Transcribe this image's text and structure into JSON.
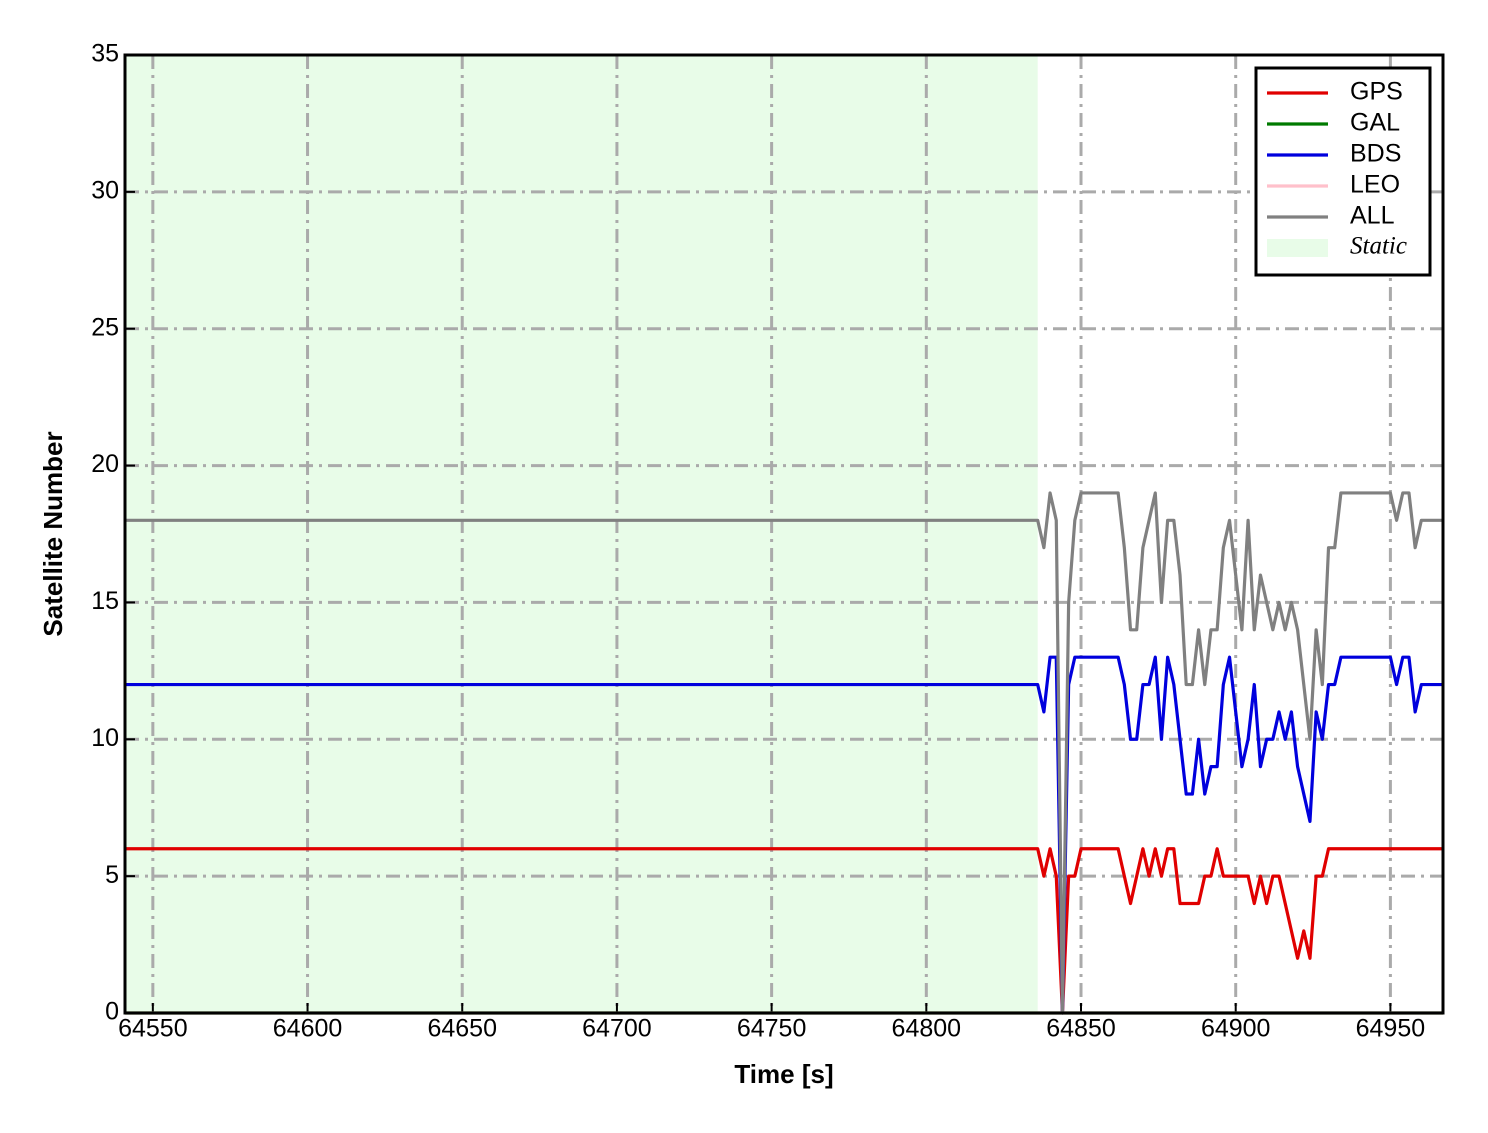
{
  "chart_data": {
    "type": "line",
    "xlabel": "Time [s]",
    "ylabel": "Satellite Number",
    "x": [
      64541,
      64836,
      64838,
      64840,
      64842,
      64844,
      64846,
      64848,
      64850,
      64852,
      64854,
      64856,
      64858,
      64860,
      64862,
      64864,
      64866,
      64868,
      64870,
      64872,
      64874,
      64876,
      64878,
      64880,
      64882,
      64884,
      64886,
      64888,
      64890,
      64892,
      64894,
      64896,
      64898,
      64900,
      64902,
      64904,
      64906,
      64908,
      64910,
      64912,
      64914,
      64916,
      64918,
      64920,
      64922,
      64924,
      64926,
      64928,
      64930,
      64932,
      64934,
      64936,
      64938,
      64940,
      64942,
      64944,
      64946,
      64948,
      64950,
      64952,
      64954,
      64956,
      64958,
      64960,
      64962,
      64964,
      64966,
      64967
    ],
    "series": [
      {
        "name": "GPS",
        "color": "#e00000",
        "values": [
          6,
          6,
          5,
          6,
          5,
          0,
          5,
          5,
          6,
          6,
          6,
          6,
          6,
          6,
          6,
          5,
          4,
          5,
          6,
          5,
          6,
          5,
          6,
          6,
          4,
          4,
          4,
          4,
          5,
          5,
          6,
          5,
          5,
          5,
          5,
          5,
          4,
          5,
          4,
          5,
          5,
          4,
          3,
          2,
          3,
          2,
          5,
          5,
          6,
          6,
          6,
          6,
          6,
          6,
          6,
          6,
          6,
          6,
          6,
          6,
          6,
          6,
          6,
          6,
          6,
          6,
          6,
          6
        ]
      },
      {
        "name": "GAL",
        "color": "#007a00",
        "values": [
          0,
          0,
          0,
          0,
          0,
          0,
          0,
          0,
          0,
          0,
          0,
          0,
          0,
          0,
          0,
          0,
          0,
          0,
          0,
          0,
          0,
          0,
          0,
          0,
          0,
          0,
          0,
          0,
          0,
          0,
          0,
          0,
          0,
          0,
          0,
          0,
          0,
          0,
          0,
          0,
          0,
          0,
          0,
          0,
          0,
          0,
          0,
          0,
          0,
          0,
          0,
          0,
          0,
          0,
          0,
          0,
          0,
          0,
          0,
          0,
          0,
          0,
          0,
          0,
          0,
          0,
          0,
          0
        ]
      },
      {
        "name": "BDS",
        "color": "#0000dd",
        "values": [
          12,
          12,
          11,
          13,
          13,
          0,
          12,
          13,
          13,
          13,
          13,
          13,
          13,
          13,
          13,
          12,
          10,
          10,
          12,
          12,
          13,
          10,
          13,
          12,
          10,
          8,
          8,
          10,
          8,
          9,
          9,
          12,
          13,
          11,
          9,
          10,
          12,
          9,
          10,
          10,
          11,
          10,
          11,
          9,
          8,
          7,
          11,
          10,
          12,
          12,
          13,
          13,
          13,
          13,
          13,
          13,
          13,
          13,
          13,
          12,
          13,
          13,
          11,
          12,
          12,
          12,
          12,
          12
        ]
      },
      {
        "name": "LEO",
        "color": "#ffc0cb",
        "values": [
          0,
          0,
          0,
          0,
          0,
          0,
          0,
          0,
          0,
          0,
          0,
          0,
          0,
          0,
          0,
          0,
          0,
          0,
          0,
          0,
          0,
          0,
          0,
          0,
          0,
          0,
          0,
          0,
          0,
          0,
          0,
          0,
          0,
          0,
          0,
          0,
          0,
          0,
          0,
          0,
          0,
          0,
          0,
          0,
          0,
          0,
          0,
          0,
          0,
          0,
          0,
          0,
          0,
          0,
          0,
          0,
          0,
          0,
          0,
          0,
          0,
          0,
          0,
          0,
          0,
          0,
          0,
          0
        ]
      },
      {
        "name": "ALL",
        "color": "#808080",
        "values": [
          18,
          18,
          17,
          19,
          18,
          0,
          15,
          18,
          19,
          19,
          19,
          19,
          19,
          19,
          19,
          17,
          14,
          14,
          17,
          18,
          19,
          15,
          18,
          18,
          16,
          12,
          12,
          14,
          12,
          14,
          14,
          17,
          18,
          16,
          14,
          18,
          14,
          16,
          15,
          14,
          15,
          14,
          15,
          14,
          12,
          10,
          14,
          12,
          17,
          17,
          19,
          19,
          19,
          19,
          19,
          19,
          19,
          19,
          19,
          18,
          19,
          19,
          17,
          18,
          18,
          18,
          18,
          18
        ]
      }
    ],
    "static_span": {
      "label": "Static",
      "range": [
        64541,
        64836
      ],
      "color": "#e8fce8"
    },
    "xlim": [
      64541,
      64967
    ],
    "xticks": [
      64550,
      64600,
      64650,
      64700,
      64750,
      64800,
      64850,
      64900,
      64950
    ],
    "ylim": [
      0,
      35
    ],
    "yticks": [
      0,
      5,
      10,
      15,
      20,
      25,
      30,
      35
    ],
    "grid": true,
    "legend": "upper right"
  }
}
